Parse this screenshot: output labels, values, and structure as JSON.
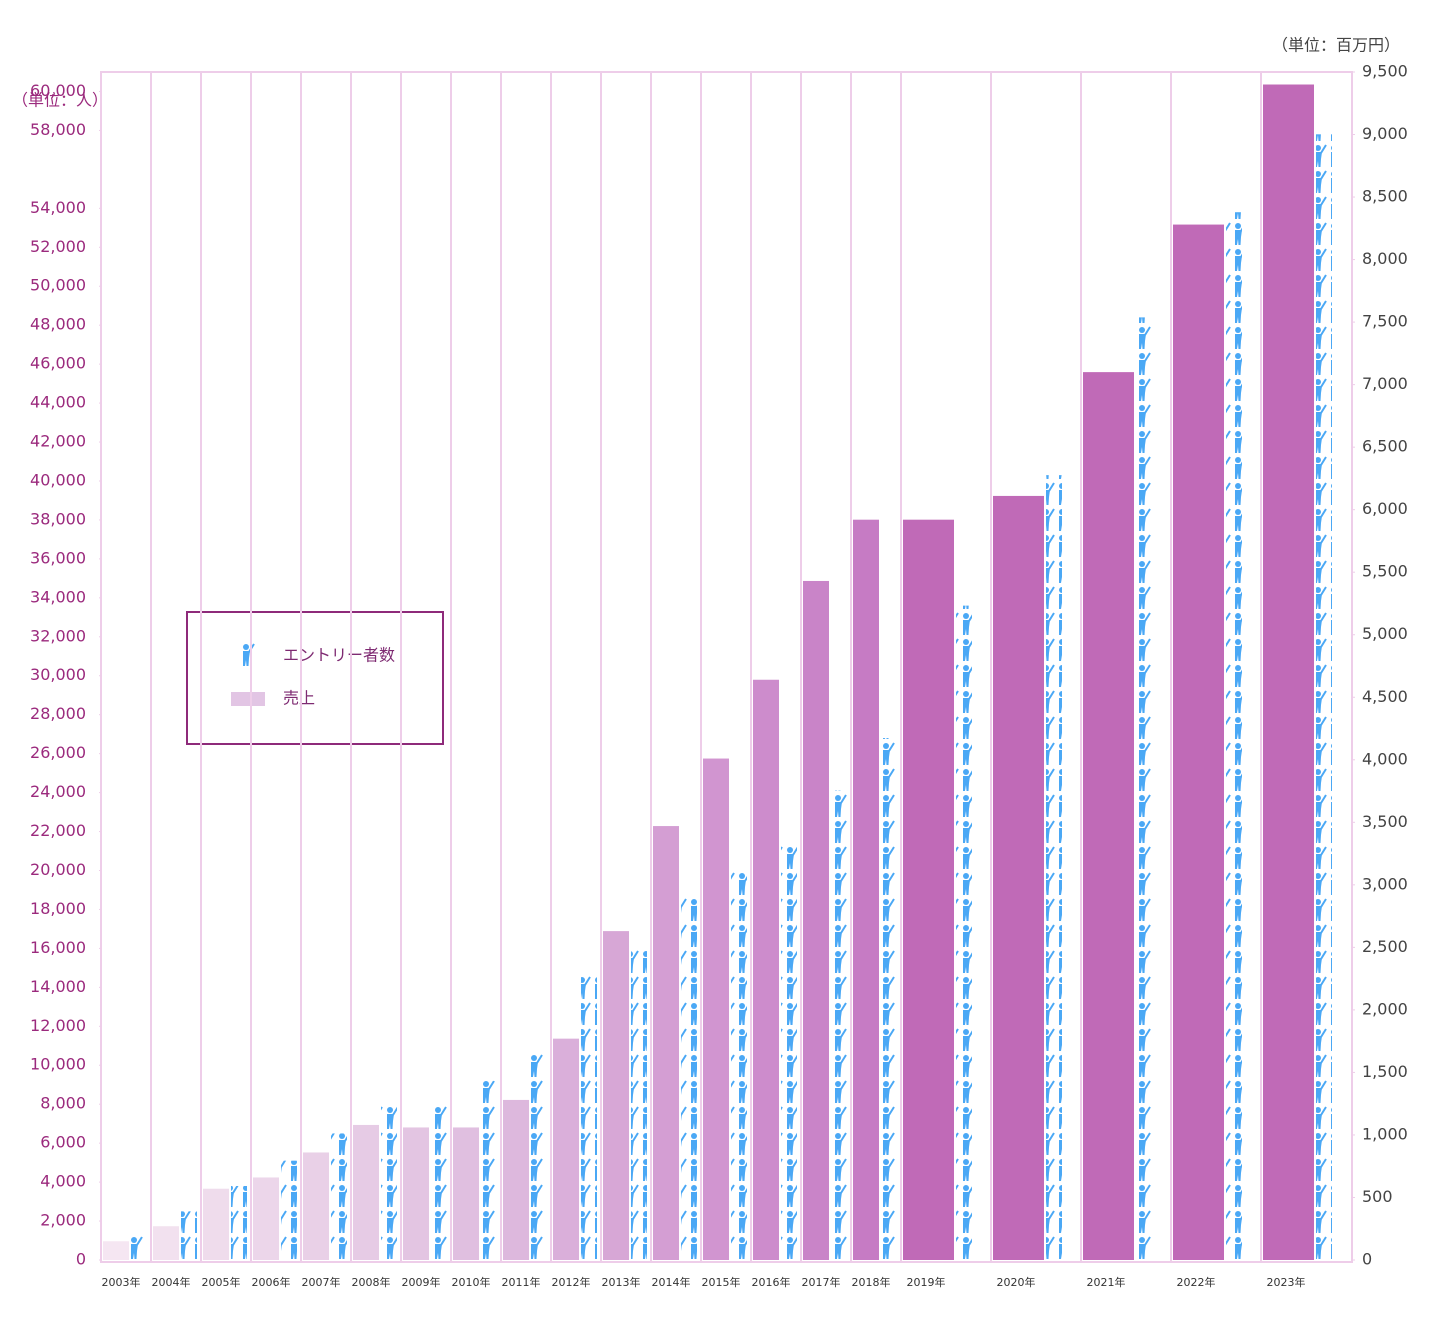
{
  "chart_data": {
    "type": "bar",
    "y_label": "（単位：人）",
    "y2_label": "（単位：百万円）",
    "categories": [
      "2003年",
      "2004年",
      "2005年",
      "2006年",
      "2007年",
      "2008年",
      "2009年",
      "2010年",
      "2011年",
      "2012年",
      "2013年",
      "2014年",
      "2015年",
      "2016年",
      "2017年",
      "2018年",
      "2019年",
      "2020年",
      "2021年",
      "2022年",
      "2023年"
    ],
    "series": [
      {
        "name": "エントリー者数",
        "axis": "y",
        "color": "#4aa8f5",
        "values": [
          1200,
          2500,
          3800,
          5100,
          6500,
          7900,
          7900,
          9200,
          10600,
          14600,
          15900,
          18700,
          20000,
          21300,
          24100,
          26800,
          33600,
          40300,
          48400,
          53800,
          57800
        ]
      },
      {
        "name": "売上",
        "axis": "y2",
        "color": "#e2c5e4",
        "colors": [
          "#f5e6f2",
          "#f2e1ef",
          "#efdcec",
          "#ecd6ea",
          "#e9d0e7",
          "#e6cbe5",
          "#e3c5e2",
          "#e0bfe0",
          "#ddb8dd",
          "#daafda",
          "#d7a7d6",
          "#d49ed3",
          "#d195d0",
          "#cd8ccc",
          "#c984c8",
          "#c67bc4",
          "#c06ab7",
          "#c06ab7",
          "#c06ab7",
          "#c06ab7",
          "#c06ab7"
        ],
        "values": [
          150,
          270,
          570,
          660,
          860,
          1080,
          1060,
          1060,
          1280,
          1770,
          2630,
          3470,
          4010,
          4640,
          5430,
          5920,
          5920,
          6110,
          7100,
          8280,
          9400
        ]
      }
    ],
    "ylim": [
      0,
      61000
    ],
    "yticks": [
      0,
      {
        "value": 2000,
        "label": "2,000"
      },
      {
        "value": 4000,
        "label": "4,000"
      },
      {
        "value": 6000,
        "label": "6,000"
      },
      {
        "value": 8000,
        "label": "8,000"
      },
      {
        "value": 10000,
        "label": "10,000"
      },
      {
        "value": 12000,
        "label": "12,000"
      },
      {
        "value": 14000,
        "label": "14,000"
      },
      {
        "value": 16000,
        "label": "16,000"
      },
      {
        "value": 18000,
        "label": "18,000"
      },
      {
        "value": 20000,
        "label": "20,000"
      },
      {
        "value": 22000,
        "label": "22,000"
      },
      {
        "value": 24000,
        "label": "24,000"
      },
      {
        "value": 26000,
        "label": "26,000"
      },
      {
        "value": 28000,
        "label": "28,000"
      },
      {
        "value": 30000,
        "label": "30,000"
      },
      {
        "value": 32000,
        "label": "32,000"
      },
      {
        "value": 34000,
        "label": "34,000"
      },
      {
        "value": 36000,
        "label": "36,000"
      },
      {
        "value": 38000,
        "label": "38,000"
      },
      {
        "value": 40000,
        "label": "40,000"
      },
      {
        "value": 42000,
        "label": "42,000"
      },
      {
        "value": 44000,
        "label": "44,000"
      },
      {
        "value": 46000,
        "label": "46,000"
      },
      {
        "value": 48000,
        "label": "48,000"
      },
      {
        "value": 50000,
        "label": "50,000"
      },
      {
        "value": 52000,
        "label": "52,000"
      },
      {
        "value": 54000,
        "label": "54,000"
      },
      {
        "value": 58000,
        "label": "58,000"
      },
      {
        "value": 60000,
        "label": "60,000"
      }
    ],
    "y2lim": [
      0,
      9500
    ],
    "y2ticks": [
      0,
      500,
      {
        "value": 1000,
        "label": "1,000"
      },
      {
        "value": 1500,
        "label": "1,500"
      },
      {
        "value": 2000,
        "label": "2,000"
      },
      {
        "value": 2500,
        "label": "2,500"
      },
      {
        "value": 3000,
        "label": "3,000"
      },
      {
        "value": 3500,
        "label": "3,500"
      },
      {
        "value": 4000,
        "label": "4,000"
      },
      {
        "value": 4500,
        "label": "4,500"
      },
      {
        "value": 5000,
        "label": "5,000"
      },
      {
        "value": 5500,
        "label": "5,500"
      },
      {
        "value": 6000,
        "label": "6,000"
      },
      {
        "value": 6500,
        "label": "6,500"
      },
      {
        "value": 7000,
        "label": "7,000"
      },
      {
        "value": 7500,
        "label": "7,500"
      },
      {
        "value": 8000,
        "label": "8,000"
      },
      {
        "value": 8500,
        "label": "8,500"
      },
      {
        "value": 9000,
        "label": "9,000"
      },
      {
        "value": 9500,
        "label": "9,500"
      }
    ],
    "legend": "left"
  }
}
